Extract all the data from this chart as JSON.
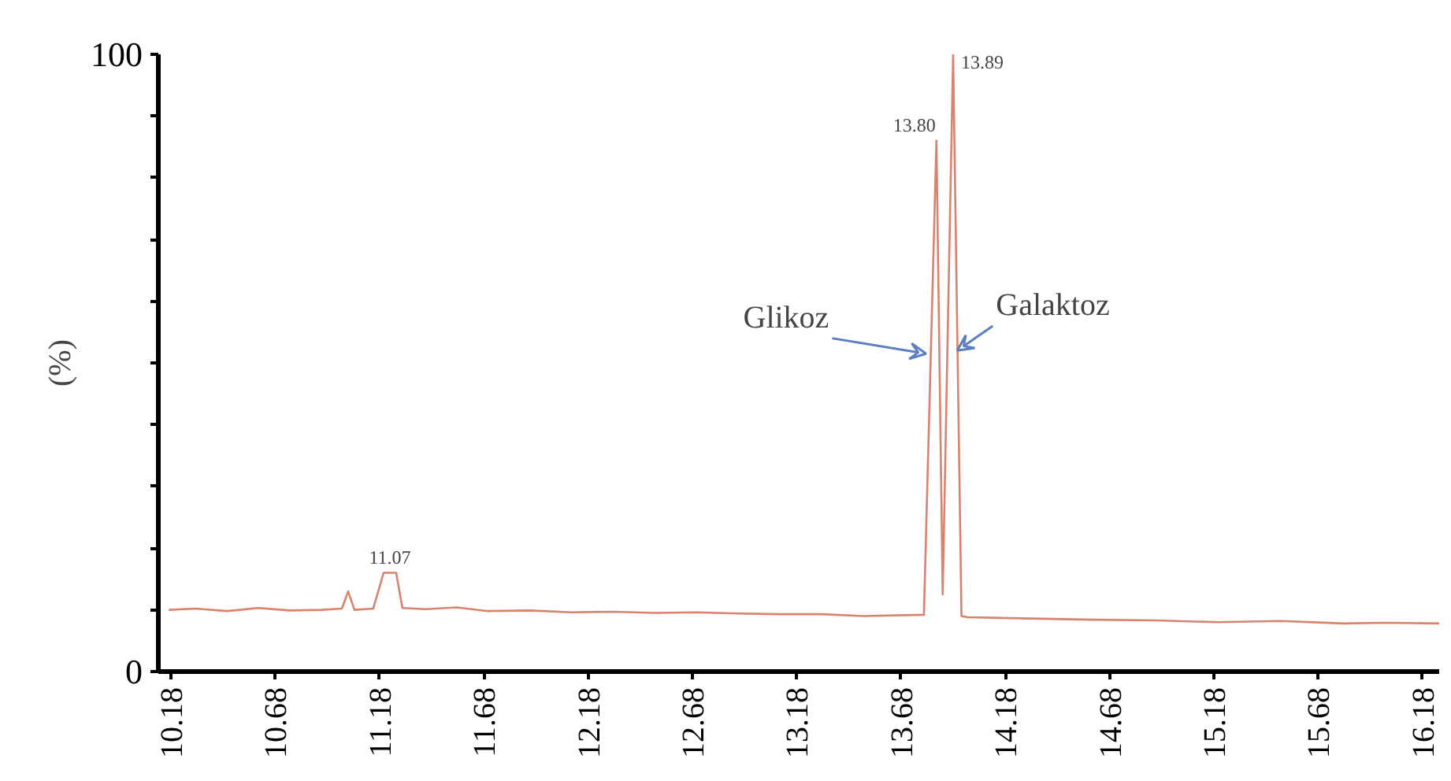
{
  "chart_data": {
    "type": "line",
    "ylabel": "(%)",
    "x": [
      10.17,
      10.3,
      10.45,
      10.6,
      10.75,
      10.9,
      11.0,
      11.03,
      11.06,
      11.15,
      11.2,
      11.26,
      11.29,
      11.4,
      11.55,
      11.7,
      11.9,
      12.1,
      12.3,
      12.5,
      12.7,
      12.9,
      13.1,
      13.3,
      13.5,
      13.79,
      13.85,
      13.88,
      13.93,
      13.97,
      14.0,
      14.3,
      14.6,
      14.9,
      15.2,
      15.5,
      15.8,
      16.0,
      16.26
    ],
    "series": [
      {
        "color": "#d9826e",
        "values": [
          10,
          10.2,
          9.8,
          10.3,
          9.9,
          10,
          10.2,
          13,
          10,
          10.2,
          16,
          16,
          10.3,
          10.1,
          10.4,
          9.8,
          9.9,
          9.6,
          9.7,
          9.5,
          9.6,
          9.4,
          9.3,
          9.3,
          9.0,
          9.2,
          86,
          12.5,
          100,
          9,
          8.8,
          8.6,
          8.4,
          8.3,
          8.0,
          8.2,
          7.8,
          7.9,
          7.8
        ]
      }
    ],
    "xlim": [
      10.12,
      16.26
    ],
    "ylim": [
      0,
      100
    ],
    "xticks": [
      10.18,
      10.68,
      11.18,
      11.68,
      12.18,
      12.68,
      13.18,
      13.68,
      14.18,
      14.68,
      15.18,
      15.68,
      16.18
    ],
    "yticks": [
      0,
      {
        "value": 10,
        "label": null
      },
      {
        "value": 20,
        "label": null
      },
      {
        "value": 30,
        "label": null
      },
      {
        "value": 40,
        "label": null
      },
      {
        "value": 50,
        "label": null
      },
      {
        "value": 60,
        "label": null
      },
      {
        "value": 70,
        "label": null
      },
      {
        "value": 80,
        "label": null
      },
      {
        "value": 90,
        "label": null
      },
      100
    ],
    "grid": false,
    "marker": "none",
    "line_style": "solid",
    "annotations": [
      {
        "text": "11.07",
        "x": 11.23,
        "y": 16
      },
      {
        "text": "13.80",
        "x": 13.85,
        "y": 86
      },
      {
        "text": "13.89",
        "x": 13.93,
        "y": 100
      },
      {
        "text": "Glikoz",
        "x": 13.8,
        "y": 51.5
      },
      {
        "text": "Galaktoz",
        "x": 13.95,
        "y": 52
      }
    ]
  }
}
